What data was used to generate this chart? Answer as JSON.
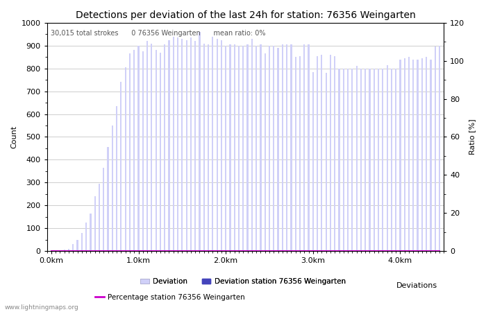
{
  "title": "Detections per deviation of the last 24h for station: 76356 Weingarten",
  "xlabel": "Deviations",
  "ylabel_left": "Count",
  "ylabel_right": "Ratio [%]",
  "annotation": "30,015 total strokes      0 76356 Weingarten      mean ratio: 0%",
  "ylim_left": [
    0,
    1000
  ],
  "ylim_right": [
    0,
    120
  ],
  "xtick_labels": [
    "0.0km",
    "1.0km",
    "2.0km",
    "3.0km",
    "4.0km"
  ],
  "xtick_positions": [
    0,
    20,
    40,
    60,
    80
  ],
  "ytick_left": [
    0,
    100,
    200,
    300,
    400,
    500,
    600,
    700,
    800,
    900,
    1000
  ],
  "ytick_right": [
    0,
    20,
    40,
    60,
    80,
    100,
    120
  ],
  "bar_color_light": "#d0d0f8",
  "bar_color_dark": "#4444bb",
  "line_color": "#cc00cc",
  "watermark": "www.lightningmaps.org",
  "total_bars": 90,
  "bar_values": [
    0,
    0,
    0,
    5,
    10,
    30,
    50,
    80,
    125,
    165,
    240,
    295,
    365,
    455,
    550,
    635,
    740,
    805,
    865,
    880,
    900,
    875,
    920,
    910,
    880,
    870,
    905,
    925,
    940,
    935,
    930,
    925,
    935,
    920,
    960,
    910,
    905,
    940,
    930,
    925,
    900,
    905,
    905,
    900,
    900,
    905,
    930,
    900,
    905,
    865,
    900,
    900,
    890,
    905,
    905,
    905,
    850,
    855,
    905,
    905,
    785,
    855,
    860,
    780,
    860,
    855,
    800,
    800,
    800,
    800,
    810,
    800,
    800,
    800,
    800,
    800,
    800,
    815,
    800,
    800,
    840,
    845,
    850,
    840,
    840,
    845,
    850,
    840,
    895,
    900
  ],
  "station_bar_values": [
    0,
    0,
    0,
    0,
    0,
    0,
    0,
    0,
    0,
    0,
    0,
    0,
    0,
    0,
    0,
    0,
    0,
    0,
    0,
    0,
    0,
    0,
    0,
    0,
    0,
    0,
    0,
    0,
    0,
    0,
    0,
    0,
    0,
    0,
    0,
    0,
    0,
    0,
    0,
    0,
    0,
    0,
    0,
    0,
    0,
    0,
    0,
    0,
    0,
    0,
    0,
    0,
    0,
    0,
    0,
    0,
    0,
    0,
    0,
    0,
    0,
    0,
    0,
    0,
    0,
    0,
    0,
    0,
    0,
    0,
    0,
    0,
    0,
    0,
    0,
    0,
    0,
    0,
    0,
    0,
    0,
    0,
    0,
    0,
    0,
    0,
    0,
    0,
    0,
    0
  ],
  "percentage_values": [
    0,
    0,
    0,
    0,
    0,
    0,
    0,
    0,
    0,
    0,
    0,
    0,
    0,
    0,
    0,
    0,
    0,
    0,
    0,
    0,
    0,
    0,
    0,
    0,
    0,
    0,
    0,
    0,
    0,
    0,
    0,
    0,
    0,
    0,
    0,
    0,
    0,
    0,
    0,
    0,
    0,
    0,
    0,
    0,
    0,
    0,
    0,
    0,
    0,
    0,
    0,
    0,
    0,
    0,
    0,
    0,
    0,
    0,
    0,
    0,
    0,
    0,
    0,
    0,
    0,
    0,
    0,
    0,
    0,
    0,
    0,
    0,
    0,
    0,
    0,
    0,
    0,
    0,
    0,
    0,
    0,
    0,
    0,
    0,
    0,
    0,
    0,
    0,
    0,
    0
  ],
  "figsize": [
    7.0,
    4.5
  ],
  "dpi": 100,
  "background_color": "#ffffff",
  "grid_color": "#bbbbbb",
  "title_fontsize": 10,
  "axis_fontsize": 8,
  "tick_fontsize": 8,
  "bar_width": 0.35
}
